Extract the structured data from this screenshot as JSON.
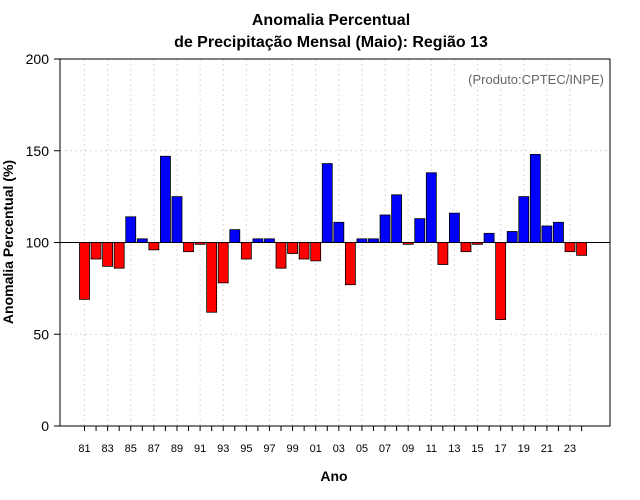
{
  "chart_data": {
    "type": "bar",
    "title": [
      "Anomalia Percentual",
      "de Precipitação Mensal (Maio): Região 13"
    ],
    "xlabel": "Ano",
    "ylabel": "Anomalia Percentual (%)",
    "source_note": "(Produto:CPTEC/INPE)",
    "ylim": [
      0,
      200
    ],
    "yticks": [
      0,
      50,
      100,
      150,
      200
    ],
    "baseline": 100,
    "grid": true,
    "colors": {
      "above": "#0000ff",
      "below": "#ff0000",
      "grid": "#d9d9d9",
      "outline": "#000000"
    },
    "categories": [
      "81",
      "82",
      "83",
      "84",
      "85",
      "86",
      "87",
      "88",
      "89",
      "90",
      "91",
      "92",
      "93",
      "94",
      "95",
      "96",
      "97",
      "98",
      "99",
      "00",
      "01",
      "02",
      "03",
      "04",
      "05",
      "06",
      "07",
      "08",
      "09",
      "10",
      "11",
      "12",
      "13",
      "14",
      "15",
      "16",
      "17",
      "18",
      "19",
      "20",
      "21",
      "22",
      "23",
      "24"
    ],
    "xtick_labels": [
      "81",
      "83",
      "85",
      "87",
      "89",
      "91",
      "93",
      "95",
      "97",
      "99",
      "01",
      "03",
      "05",
      "07",
      "09",
      "11",
      "13",
      "15",
      "17",
      "19",
      "21",
      "23"
    ],
    "values": [
      69,
      91,
      87,
      86,
      114,
      102,
      96,
      147,
      125,
      95,
      99,
      62,
      78,
      107,
      91,
      102,
      102,
      86,
      94,
      91,
      90,
      143,
      111,
      77,
      102,
      102,
      115,
      126,
      99,
      113,
      138,
      88,
      116,
      95,
      99,
      105,
      58,
      106,
      125,
      148,
      109,
      111,
      95,
      93
    ]
  }
}
